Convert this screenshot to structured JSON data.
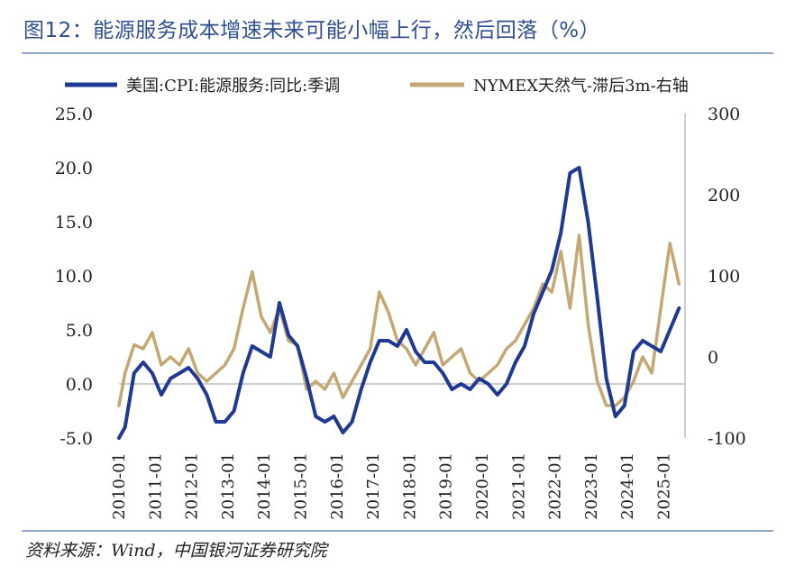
{
  "title": "图12：能源服务成本增速未来可能小幅上行，然后回落（%）",
  "source": "资料来源：Wind，中国银河证券研究院",
  "colors": {
    "title": "#2f4f90",
    "rule": "#8ea4c8",
    "series1": "#1f3a93",
    "series2": "#c5a774",
    "axis": "#bdbdbd"
  },
  "chart_data": {
    "type": "line",
    "legend_position": "top",
    "grid": false,
    "x_ticks": [
      "2010-01",
      "2011-01",
      "2012-01",
      "2013-01",
      "2014-01",
      "2015-01",
      "2016-01",
      "2017-01",
      "2018-01",
      "2019-01",
      "2020-01",
      "2021-01",
      "2022-01",
      "2023-01",
      "2024-01",
      "2025-01"
    ],
    "y_left": {
      "ticks": [
        "25.0",
        "20.0",
        "15.0",
        "10.0",
        "5.0",
        "0.0",
        "-5.0"
      ],
      "range": [
        -5,
        25
      ]
    },
    "y_right": {
      "ticks": [
        "300",
        "200",
        "100",
        "0",
        "-100"
      ],
      "range": [
        -100,
        300
      ]
    },
    "series": [
      {
        "name": "美国:CPI:能源服务:同比:季调",
        "axis": "left",
        "x": [
          "2010-01",
          "2010-03",
          "2010-06",
          "2010-09",
          "2010-12",
          "2011-03",
          "2011-06",
          "2011-09",
          "2011-12",
          "2012-03",
          "2012-06",
          "2012-09",
          "2012-12",
          "2013-03",
          "2013-06",
          "2013-09",
          "2013-12",
          "2014-03",
          "2014-06",
          "2014-09",
          "2014-12",
          "2015-03",
          "2015-06",
          "2015-09",
          "2015-12",
          "2016-03",
          "2016-06",
          "2016-09",
          "2016-12",
          "2017-03",
          "2017-06",
          "2017-09",
          "2017-12",
          "2018-03",
          "2018-06",
          "2018-09",
          "2018-12",
          "2019-03",
          "2019-06",
          "2019-09",
          "2019-12",
          "2020-03",
          "2020-06",
          "2020-09",
          "2020-12",
          "2021-03",
          "2021-06",
          "2021-09",
          "2021-12",
          "2022-03",
          "2022-06",
          "2022-09",
          "2022-12",
          "2023-03",
          "2023-06",
          "2023-09",
          "2023-12",
          "2024-03",
          "2024-06",
          "2024-09",
          "2024-12",
          "2025-03",
          "2025-06"
        ],
        "values": [
          -5.0,
          -4.0,
          1.0,
          2.0,
          1.0,
          -1.0,
          0.5,
          1.0,
          1.5,
          0.5,
          -1.0,
          -3.5,
          -3.5,
          -2.5,
          1.0,
          3.5,
          3.0,
          2.5,
          7.5,
          4.5,
          3.5,
          0.5,
          -3.0,
          -3.5,
          -3.0,
          -4.5,
          -3.5,
          -0.5,
          2.0,
          4.0,
          4.0,
          3.5,
          5.0,
          3.0,
          2.0,
          2.0,
          1.0,
          -0.5,
          0.0,
          -0.5,
          0.5,
          0.0,
          -1.0,
          0.0,
          2.0,
          3.5,
          6.5,
          8.5,
          10.5,
          14.0,
          19.5,
          20.0,
          15.0,
          8.0,
          0.5,
          -3.0,
          -2.0,
          3.0,
          4.0,
          3.5,
          3.0,
          5.0,
          7.0
        ]
      },
      {
        "name": "NYMEX天然气-滞后3m-右轴",
        "axis": "right",
        "x": [
          "2010-01",
          "2010-03",
          "2010-06",
          "2010-09",
          "2010-12",
          "2011-03",
          "2011-06",
          "2011-09",
          "2011-12",
          "2012-03",
          "2012-06",
          "2012-09",
          "2012-12",
          "2013-03",
          "2013-06",
          "2013-09",
          "2013-12",
          "2014-03",
          "2014-06",
          "2014-09",
          "2014-12",
          "2015-03",
          "2015-06",
          "2015-09",
          "2015-12",
          "2016-03",
          "2016-06",
          "2016-09",
          "2016-12",
          "2017-03",
          "2017-06",
          "2017-09",
          "2017-12",
          "2018-03",
          "2018-06",
          "2018-09",
          "2018-12",
          "2019-03",
          "2019-06",
          "2019-09",
          "2019-12",
          "2020-03",
          "2020-06",
          "2020-09",
          "2020-12",
          "2021-03",
          "2021-06",
          "2021-09",
          "2021-12",
          "2022-03",
          "2022-06",
          "2022-09",
          "2022-12",
          "2023-03",
          "2023-06",
          "2023-09",
          "2023-12",
          "2024-03",
          "2024-06",
          "2024-09",
          "2024-12",
          "2025-03",
          "2025-06"
        ],
        "values": [
          -60,
          -20,
          15,
          10,
          30,
          -10,
          0,
          -10,
          10,
          -20,
          -30,
          -20,
          -10,
          10,
          60,
          105,
          50,
          30,
          60,
          20,
          15,
          -40,
          -30,
          -40,
          -20,
          -50,
          -30,
          -10,
          10,
          80,
          55,
          20,
          10,
          -10,
          10,
          30,
          -10,
          0,
          10,
          -20,
          -30,
          -20,
          -10,
          10,
          20,
          40,
          60,
          90,
          80,
          130,
          60,
          150,
          40,
          -30,
          -60,
          -60,
          -50,
          -30,
          0,
          -20,
          60,
          140,
          90
        ]
      }
    ]
  }
}
